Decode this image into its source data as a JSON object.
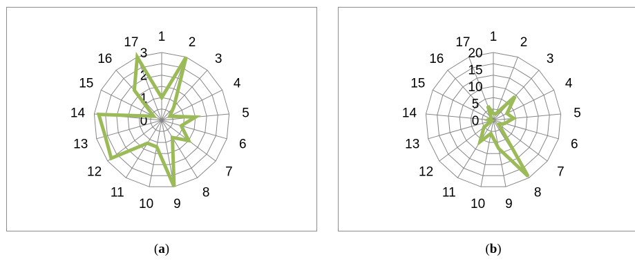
{
  "chart_data": [
    {
      "type": "radar",
      "panel": "a",
      "categories": [
        "1",
        "2",
        "3",
        "4",
        "5",
        "6",
        "7",
        "8",
        "9",
        "10",
        "11",
        "12",
        "13",
        "14",
        "15",
        "16",
        "17"
      ],
      "radial_ticks": [
        0,
        1,
        2,
        3
      ],
      "rmax": 3,
      "grid": true,
      "legend": "none",
      "line_color": "#9bbb59",
      "grid_color": "#868686",
      "series": [
        {
          "values": [
            1,
            3,
            0.8,
            0.4,
            1.5,
            0.9,
            1.5,
            0.9,
            3,
            1.2,
            1.2,
            2.8,
            2.6,
            2.8,
            0.4,
            1.8,
            3
          ]
        }
      ]
    },
    {
      "type": "radar",
      "panel": "b",
      "categories": [
        "1",
        "2",
        "3",
        "4",
        "5",
        "6",
        "7",
        "8",
        "9",
        "10",
        "11",
        "12",
        "13",
        "14",
        "15",
        "16",
        "17"
      ],
      "radial_ticks": [
        0,
        5,
        10,
        15,
        20
      ],
      "rmax": 20,
      "grid": true,
      "legend": "none",
      "line_color": "#9bbb59",
      "grid_color": "#868686",
      "series": [
        {
          "values": [
            2,
            2,
            9.5,
            4.5,
            6,
            3.5,
            2,
            19.5,
            8.5,
            4,
            7.5,
            3.5,
            0.5,
            1.5,
            1,
            1,
            4.5
          ]
        }
      ]
    }
  ],
  "captions": {
    "a": {
      "open": "(",
      "letter": "a",
      "close": ")"
    },
    "b": {
      "open": "(",
      "letter": "b",
      "close": ")"
    }
  }
}
